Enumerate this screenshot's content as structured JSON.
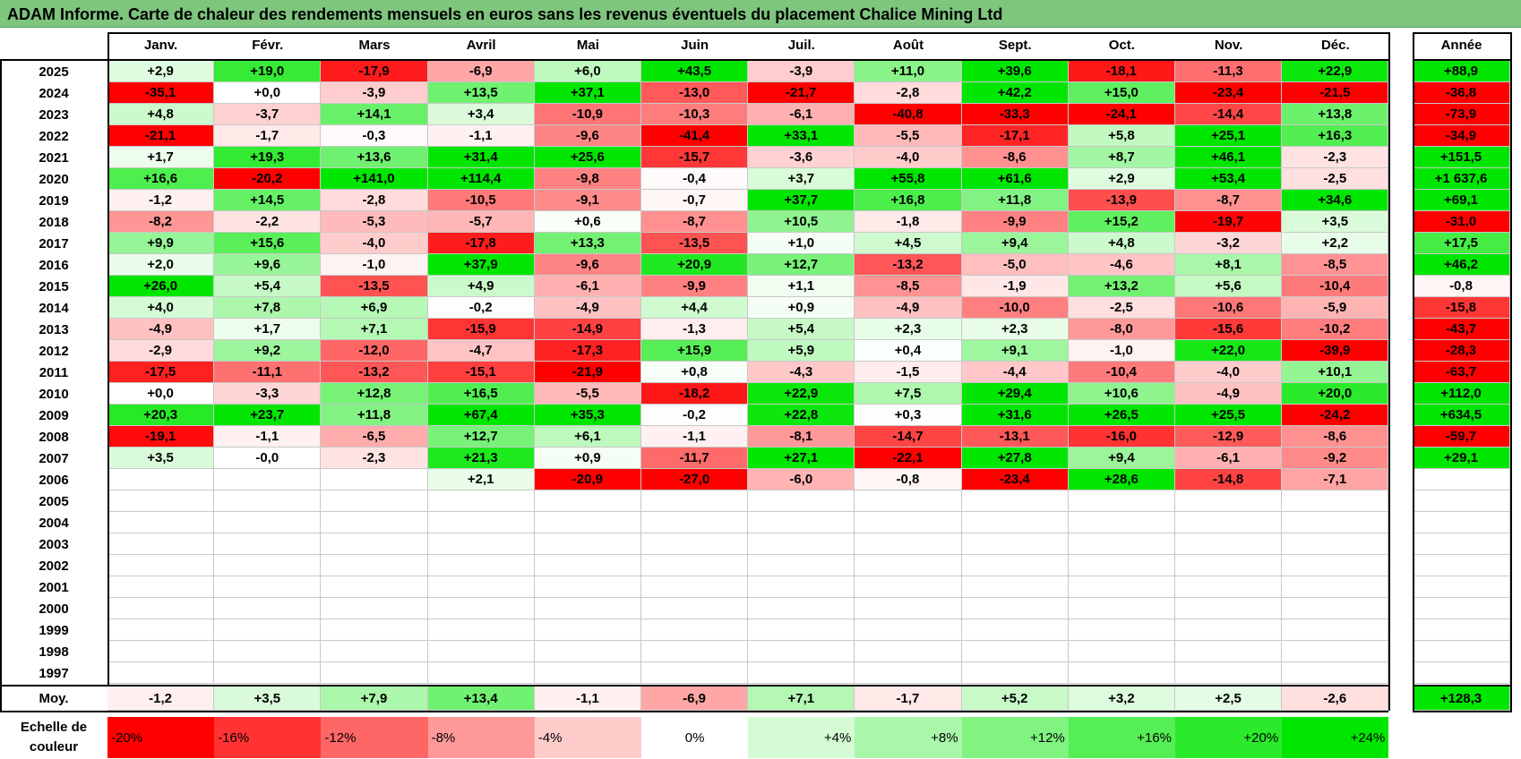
{
  "title": "ADAM Informe. Carte de chaleur des rendements mensuels en euros sans les revenus éventuels du placement Chalice Mining Ltd",
  "colors": {
    "title_bg": "#7ec57e",
    "max_red": "#ff0000",
    "max_green": "#00e600",
    "neutral": "#ffffff"
  },
  "chart_data": {
    "type": "heatmap",
    "title": "ADAM Informe. Carte de chaleur des rendements mensuels en euros sans les revenus éventuels du placement Chalice Mining Ltd",
    "months": [
      "Janv.",
      "Févr.",
      "Mars",
      "Avril",
      "Mai",
      "Juin",
      "Juil.",
      "Août",
      "Sept.",
      "Oct.",
      "Nov.",
      "Déc."
    ],
    "year_header": "Année",
    "avg_label": "Moy.",
    "scale_label": "Echelle de couleur",
    "years": [
      "2025",
      "2024",
      "2023",
      "2022",
      "2021",
      "2020",
      "2019",
      "2018",
      "2017",
      "2016",
      "2015",
      "2014",
      "2013",
      "2012",
      "2011",
      "2010",
      "2009",
      "2008",
      "2007",
      "2006",
      "2005",
      "2004",
      "2003",
      "2002",
      "2001",
      "2000",
      "1999",
      "1998",
      "1997"
    ],
    "rows": [
      {
        "year": "2025",
        "months": [
          "+2,9",
          "+19,0",
          "-17,9",
          "-6,9",
          "+6,0",
          "+43,5",
          "-3,9",
          "+11,0",
          "+39,6",
          "-18,1",
          "-11,3",
          "+22,9"
        ],
        "annual": "+88,9"
      },
      {
        "year": "2024",
        "months": [
          "-35,1",
          "+0,0",
          "-3,9",
          "+13,5",
          "+37,1",
          "-13,0",
          "-21,7",
          "-2,8",
          "+42,2",
          "+15,0",
          "-23,4",
          "-21,5"
        ],
        "annual": "-36,8"
      },
      {
        "year": "2023",
        "months": [
          "+4,8",
          "-3,7",
          "+14,1",
          "+3,4",
          "-10,9",
          "-10,3",
          "-6,1",
          "-40,8",
          "-33,3",
          "-24,1",
          "-14,4",
          "+13,8"
        ],
        "annual": "-73,9"
      },
      {
        "year": "2022",
        "months": [
          "-21,1",
          "-1,7",
          "-0,3",
          "-1,1",
          "-9,6",
          "-41,4",
          "+33,1",
          "-5,5",
          "-17,1",
          "+5,8",
          "+25,1",
          "+16,3"
        ],
        "annual": "-34,9"
      },
      {
        "year": "2021",
        "months": [
          "+1,7",
          "+19,3",
          "+13,6",
          "+31,4",
          "+25,6",
          "-15,7",
          "-3,6",
          "-4,0",
          "-8,6",
          "+8,7",
          "+46,1",
          "-2,3"
        ],
        "annual": "+151,5"
      },
      {
        "year": "2020",
        "months": [
          "+16,6",
          "-20,2",
          "+141,0",
          "+114,4",
          "-9,8",
          "-0,4",
          "+3,7",
          "+55,8",
          "+61,6",
          "+2,9",
          "+53,4",
          "-2,5"
        ],
        "annual": "+1 637,6"
      },
      {
        "year": "2019",
        "months": [
          "-1,2",
          "+14,5",
          "-2,8",
          "-10,5",
          "-9,1",
          "-0,7",
          "+37,7",
          "+16,8",
          "+11,8",
          "-13,9",
          "-8,7",
          "+34,6"
        ],
        "annual": "+69,1"
      },
      {
        "year": "2018",
        "months": [
          "-8,2",
          "-2,2",
          "-5,3",
          "-5,7",
          "+0,6",
          "-8,7",
          "+10,5",
          "-1,8",
          "-9,9",
          "+15,2",
          "-19,7",
          "+3,5"
        ],
        "annual": "-31,0"
      },
      {
        "year": "2017",
        "months": [
          "+9,9",
          "+15,6",
          "-4,0",
          "-17,8",
          "+13,3",
          "-13,5",
          "+1,0",
          "+4,5",
          "+9,4",
          "+4,8",
          "-3,2",
          "+2,2"
        ],
        "annual": "+17,5"
      },
      {
        "year": "2016",
        "months": [
          "+2,0",
          "+9,6",
          "-1,0",
          "+37,9",
          "-9,6",
          "+20,9",
          "+12,7",
          "-13,2",
          "-5,0",
          "-4,6",
          "+8,1",
          "-8,5"
        ],
        "annual": "+46,2"
      },
      {
        "year": "2015",
        "months": [
          "+26,0",
          "+5,4",
          "-13,5",
          "+4,9",
          "-6,1",
          "-9,9",
          "+1,1",
          "-8,5",
          "-1,9",
          "+13,2",
          "+5,6",
          "-10,4"
        ],
        "annual": "-0,8"
      },
      {
        "year": "2014",
        "months": [
          "+4,0",
          "+7,8",
          "+6,9",
          "-0,2",
          "-4,9",
          "+4,4",
          "+0,9",
          "-4,9",
          "-10,0",
          "-2,5",
          "-10,6",
          "-5,9"
        ],
        "annual": "-15,8"
      },
      {
        "year": "2013",
        "months": [
          "-4,9",
          "+1,7",
          "+7,1",
          "-15,9",
          "-14,9",
          "-1,3",
          "+5,4",
          "+2,3",
          "+2,3",
          "-8,0",
          "-15,6",
          "-10,2"
        ],
        "annual": "-43,7"
      },
      {
        "year": "2012",
        "months": [
          "-2,9",
          "+9,2",
          "-12,0",
          "-4,7",
          "-17,3",
          "+15,9",
          "+5,9",
          "+0,4",
          "+9,1",
          "-1,0",
          "+22,0",
          "-39,9"
        ],
        "annual": "-28,3"
      },
      {
        "year": "2011",
        "months": [
          "-17,5",
          "-11,1",
          "-13,2",
          "-15,1",
          "-21,9",
          "+0,8",
          "-4,3",
          "-1,5",
          "-4,4",
          "-10,4",
          "-4,0",
          "+10,1"
        ],
        "annual": "-63,7"
      },
      {
        "year": "2010",
        "months": [
          "+0,0",
          "-3,3",
          "+12,8",
          "+16,5",
          "-5,5",
          "-18,2",
          "+22,9",
          "+7,5",
          "+29,4",
          "+10,6",
          "-4,9",
          "+20,0"
        ],
        "annual": "+112,0"
      },
      {
        "year": "2009",
        "months": [
          "+20,3",
          "+23,7",
          "+11,8",
          "+67,4",
          "+35,3",
          "-0,2",
          "+22,8",
          "+0,3",
          "+31,6",
          "+26,5",
          "+25,5",
          "-24,2"
        ],
        "annual": "+634,5"
      },
      {
        "year": "2008",
        "months": [
          "-19,1",
          "-1,1",
          "-6,5",
          "+12,7",
          "+6,1",
          "-1,1",
          "-8,1",
          "-14,7",
          "-13,1",
          "-16,0",
          "-12,9",
          "-8,6"
        ],
        "annual": "-59,7"
      },
      {
        "year": "2007",
        "months": [
          "+3,5",
          "-0,0",
          "-2,3",
          "+21,3",
          "+0,9",
          "-11,7",
          "+27,1",
          "-22,1",
          "+27,8",
          "+9,4",
          "-6,1",
          "-9,2"
        ],
        "annual": "+29,1"
      },
      {
        "year": "2006",
        "months": [
          "",
          "",
          "",
          "+2,1",
          "-20,9",
          "-27,0",
          "-6,0",
          "-0,8",
          "-23,4",
          "+28,6",
          "-14,8",
          "-7,1"
        ],
        "annual": ""
      },
      {
        "year": "2005",
        "months": [
          "",
          "",
          "",
          "",
          "",
          "",
          "",
          "",
          "",
          "",
          "",
          ""
        ],
        "annual": ""
      },
      {
        "year": "2004",
        "months": [
          "",
          "",
          "",
          "",
          "",
          "",
          "",
          "",
          "",
          "",
          "",
          ""
        ],
        "annual": ""
      },
      {
        "year": "2003",
        "months": [
          "",
          "",
          "",
          "",
          "",
          "",
          "",
          "",
          "",
          "",
          "",
          ""
        ],
        "annual": ""
      },
      {
        "year": "2002",
        "months": [
          "",
          "",
          "",
          "",
          "",
          "",
          "",
          "",
          "",
          "",
          "",
          ""
        ],
        "annual": ""
      },
      {
        "year": "2001",
        "months": [
          "",
          "",
          "",
          "",
          "",
          "",
          "",
          "",
          "",
          "",
          "",
          ""
        ],
        "annual": ""
      },
      {
        "year": "2000",
        "months": [
          "",
          "",
          "",
          "",
          "",
          "",
          "",
          "",
          "",
          "",
          "",
          ""
        ],
        "annual": ""
      },
      {
        "year": "1999",
        "months": [
          "",
          "",
          "",
          "",
          "",
          "",
          "",
          "",
          "",
          "",
          "",
          ""
        ],
        "annual": ""
      },
      {
        "year": "1998",
        "months": [
          "",
          "",
          "",
          "",
          "",
          "",
          "",
          "",
          "",
          "",
          "",
          ""
        ],
        "annual": ""
      },
      {
        "year": "1997",
        "months": [
          "",
          "",
          "",
          "",
          "",
          "",
          "",
          "",
          "",
          "",
          "",
          ""
        ],
        "annual": ""
      }
    ],
    "averages": [
      "-1,2",
      "+3,5",
      "+7,9",
      "+13,4",
      "-1,1",
      "-6,9",
      "+7,1",
      "-1,7",
      "+5,2",
      "+3,2",
      "+2,5",
      "-2,6"
    ],
    "average_annual": "+128,3",
    "scale": [
      "-20%",
      "-16%",
      "-12%",
      "-8%",
      "-4%",
      "0%",
      "+4%",
      "+8%",
      "+12%",
      "+16%",
      "+20%",
      "+24%"
    ]
  }
}
